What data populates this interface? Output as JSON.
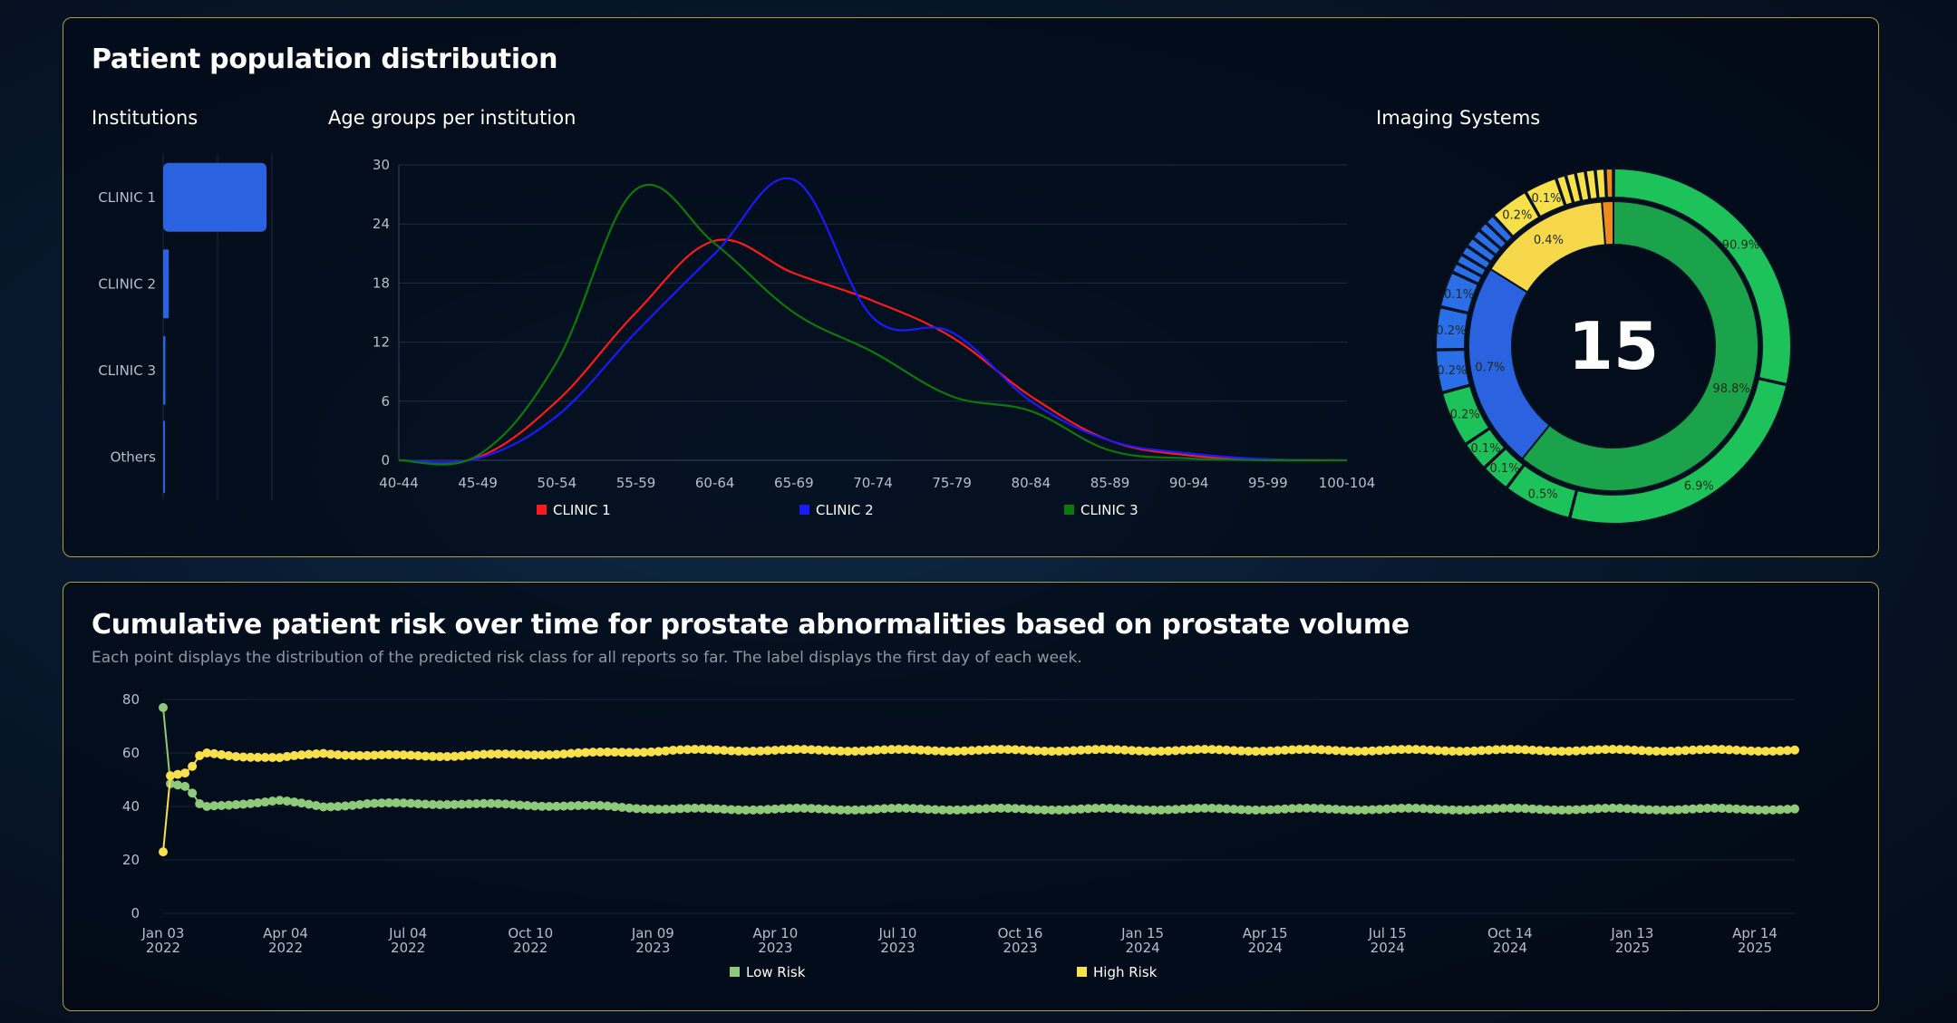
{
  "population_panel": {
    "title": "Patient population distribution",
    "institutions_label": "Institutions",
    "age_groups_label": "Age groups per institution",
    "imaging_label": "Imaging Systems"
  },
  "risk_panel": {
    "title": "Cumulative patient risk over time for prostate abnormalities based on prostate volume",
    "subtitle": "Each point displays the distribution of the predicted risk class for all reports so far. The label displays the first day of each week."
  },
  "chart_data": [
    {
      "type": "bar",
      "orientation": "horizontal",
      "categories": [
        "CLINIC 1",
        "CLINIC 2",
        "CLINIC 3",
        "Others"
      ],
      "values": [
        92,
        5,
        2,
        1
      ],
      "color": "#2a62e0"
    },
    {
      "type": "line",
      "categories": [
        "40-44",
        "45-49",
        "50-54",
        "55-59",
        "60-64",
        "65-69",
        "70-74",
        "75-79",
        "80-84",
        "85-89",
        "90-94",
        "95-99",
        "100-104"
      ],
      "ylim": [
        0,
        30
      ],
      "yticks": [
        0,
        6,
        12,
        18,
        24,
        30
      ],
      "series": [
        {
          "name": "CLINIC 1",
          "color": "#ff1a1a",
          "values": [
            0,
            0.3,
            6,
            15,
            22.3,
            19,
            16.2,
            12.5,
            6.5,
            2,
            0.5,
            0.1,
            0
          ]
        },
        {
          "name": "CLINIC 2",
          "color": "#1a1aff",
          "values": [
            0,
            0.2,
            4.5,
            13,
            21,
            28.5,
            14.5,
            13,
            6,
            2,
            0.7,
            0.1,
            0
          ]
        },
        {
          "name": "CLINIC 3",
          "color": "#0a7a0a",
          "values": [
            0,
            0.5,
            10,
            27.5,
            22,
            15,
            11,
            6.5,
            5,
            1,
            0.2,
            0,
            0
          ]
        }
      ],
      "legend": "bottom"
    },
    {
      "type": "pie",
      "style": "sunburst",
      "center_label": "15",
      "inner": [
        {
          "value": 98.8,
          "label": "98.8%",
          "color": "#1aa34a"
        },
        {
          "value": 0.7,
          "label": "0.7%",
          "color": "#2a62e0"
        },
        {
          "value": 0.4,
          "label": "0.4%",
          "color": "#f7d84a"
        },
        {
          "value": 0.1,
          "label": "",
          "color": "#f08a1a"
        }
      ],
      "outer": [
        {
          "value": 90.9,
          "label": "90.9%",
          "color": "#1ec25a"
        },
        {
          "value": 6.9,
          "label": "6.9%",
          "color": "#1ec25a"
        },
        {
          "value": 0.5,
          "label": "0.5%",
          "color": "#1ec25a"
        },
        {
          "value": 0.1,
          "label": "0.1%",
          "color": "#1ec25a"
        },
        {
          "value": 0.1,
          "label": "0.1%",
          "color": "#1ec25a"
        },
        {
          "value": 0.2,
          "label": "0.2%",
          "color": "#1ec25a"
        },
        {
          "value": 0.2,
          "label": "0.2%",
          "color": "#2a6ee8"
        },
        {
          "value": 0.2,
          "label": "0.2%",
          "color": "#2a6ee8"
        },
        {
          "value": 0.1,
          "label": "0.1%",
          "color": "#2a6ee8"
        },
        {
          "value": 0.02,
          "label": "",
          "color": "#2a6ee8"
        },
        {
          "value": 0.02,
          "label": "",
          "color": "#2a6ee8"
        },
        {
          "value": 0.02,
          "label": "",
          "color": "#2a6ee8"
        },
        {
          "value": 0.02,
          "label": "",
          "color": "#2a6ee8"
        },
        {
          "value": 0.02,
          "label": "",
          "color": "#2a6ee8"
        },
        {
          "value": 0.02,
          "label": "",
          "color": "#2a6ee8"
        },
        {
          "value": 0.02,
          "label": "",
          "color": "#2a6ee8"
        },
        {
          "value": 0.2,
          "label": "0.2%",
          "color": "#f7e04a"
        },
        {
          "value": 0.1,
          "label": "0.1%",
          "color": "#f7e04a"
        },
        {
          "value": 0.02,
          "label": "",
          "color": "#f7e04a"
        },
        {
          "value": 0.02,
          "label": "",
          "color": "#f7e04a"
        },
        {
          "value": 0.02,
          "label": "",
          "color": "#f7e04a"
        },
        {
          "value": 0.02,
          "label": "",
          "color": "#f7e04a"
        },
        {
          "value": 0.02,
          "label": "",
          "color": "#f7e04a"
        },
        {
          "value": 0.02,
          "label": "",
          "color": "#f08a1a"
        }
      ]
    },
    {
      "type": "line",
      "style": "markers",
      "ylim": [
        0,
        80
      ],
      "yticks": [
        0,
        20,
        40,
        60,
        80
      ],
      "xticks": [
        "Jan 03|2022",
        "Apr 04|2022",
        "Jul 04|2022",
        "Oct 10|2022",
        "Jan 09|2023",
        "Apr 10|2023",
        "Jul 10|2023",
        "Oct 16|2023",
        "Jan 15|2024",
        "Apr 15|2024",
        "Jul 15|2024",
        "Oct 14|2024",
        "Jan 13|2025",
        "Apr 14|2025"
      ],
      "series": [
        {
          "name": "Low Risk",
          "color": "#8fc97a",
          "keypoints": [
            [
              0,
              77
            ],
            [
              1,
              48.5
            ],
            [
              2,
              48
            ],
            [
              3,
              47.5
            ],
            [
              4,
              45
            ],
            [
              5,
              41
            ],
            [
              6,
              40
            ],
            [
              10,
              41
            ],
            [
              16,
              42
            ],
            [
              22,
              40
            ],
            [
              28,
              41
            ],
            [
              40,
              41
            ],
            [
              60,
              40
            ],
            [
              70,
              39
            ],
            [
              100,
              39
            ],
            [
              150,
              39
            ],
            [
              180,
              39
            ],
            [
              224,
              39
            ]
          ]
        },
        {
          "name": "High Risk",
          "color": "#f7e04a",
          "keypoints": [
            [
              0,
              23
            ],
            [
              1,
              51.5
            ],
            [
              2,
              52
            ],
            [
              3,
              52.5
            ],
            [
              4,
              55
            ],
            [
              5,
              59
            ],
            [
              6,
              60
            ],
            [
              10,
              59
            ],
            [
              16,
              58
            ],
            [
              22,
              60
            ],
            [
              28,
              59
            ],
            [
              40,
              59
            ],
            [
              60,
              60
            ],
            [
              70,
              61
            ],
            [
              100,
              61
            ],
            [
              150,
              61
            ],
            [
              180,
              61
            ],
            [
              224,
              61
            ]
          ]
        }
      ],
      "legend": "bottom"
    }
  ]
}
